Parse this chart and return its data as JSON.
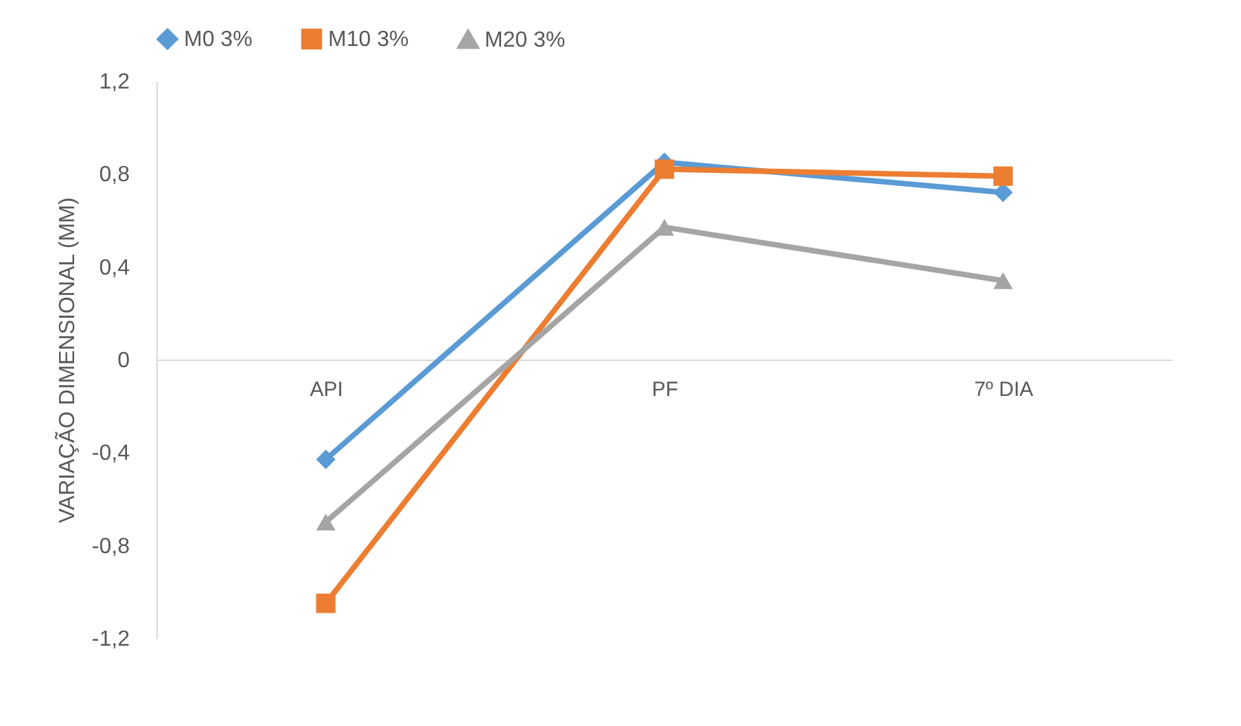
{
  "chart_data": {
    "type": "line",
    "ylabel": "VARIAÇÃO DIMENSIONAL (MM)",
    "categories": [
      "API",
      "PF",
      "7º DIA"
    ],
    "series": [
      {
        "name": "M0 3%",
        "color": "#5b9bd5",
        "marker": "diamond",
        "values": [
          -0.43,
          0.85,
          0.72
        ]
      },
      {
        "name": "M10 3%",
        "color": "#ed7d31",
        "marker": "square",
        "values": [
          -1.05,
          0.82,
          0.79
        ]
      },
      {
        "name": "M20 3%",
        "color": "#a5a5a5",
        "marker": "triangle",
        "values": [
          -0.7,
          0.57,
          0.34
        ]
      }
    ],
    "ylim": [
      -1.2,
      1.2
    ],
    "yticks": [
      {
        "value": -1.2,
        "label": "-1,2"
      },
      {
        "value": -0.8,
        "label": "-0,8"
      },
      {
        "value": -0.4,
        "label": "-0,4"
      },
      0,
      {
        "value": 0.4,
        "label": "0,4"
      },
      {
        "value": 0.8,
        "label": "0,8"
      },
      {
        "value": 1.2,
        "label": "1,2"
      }
    ],
    "grid": false,
    "legend": "top"
  }
}
